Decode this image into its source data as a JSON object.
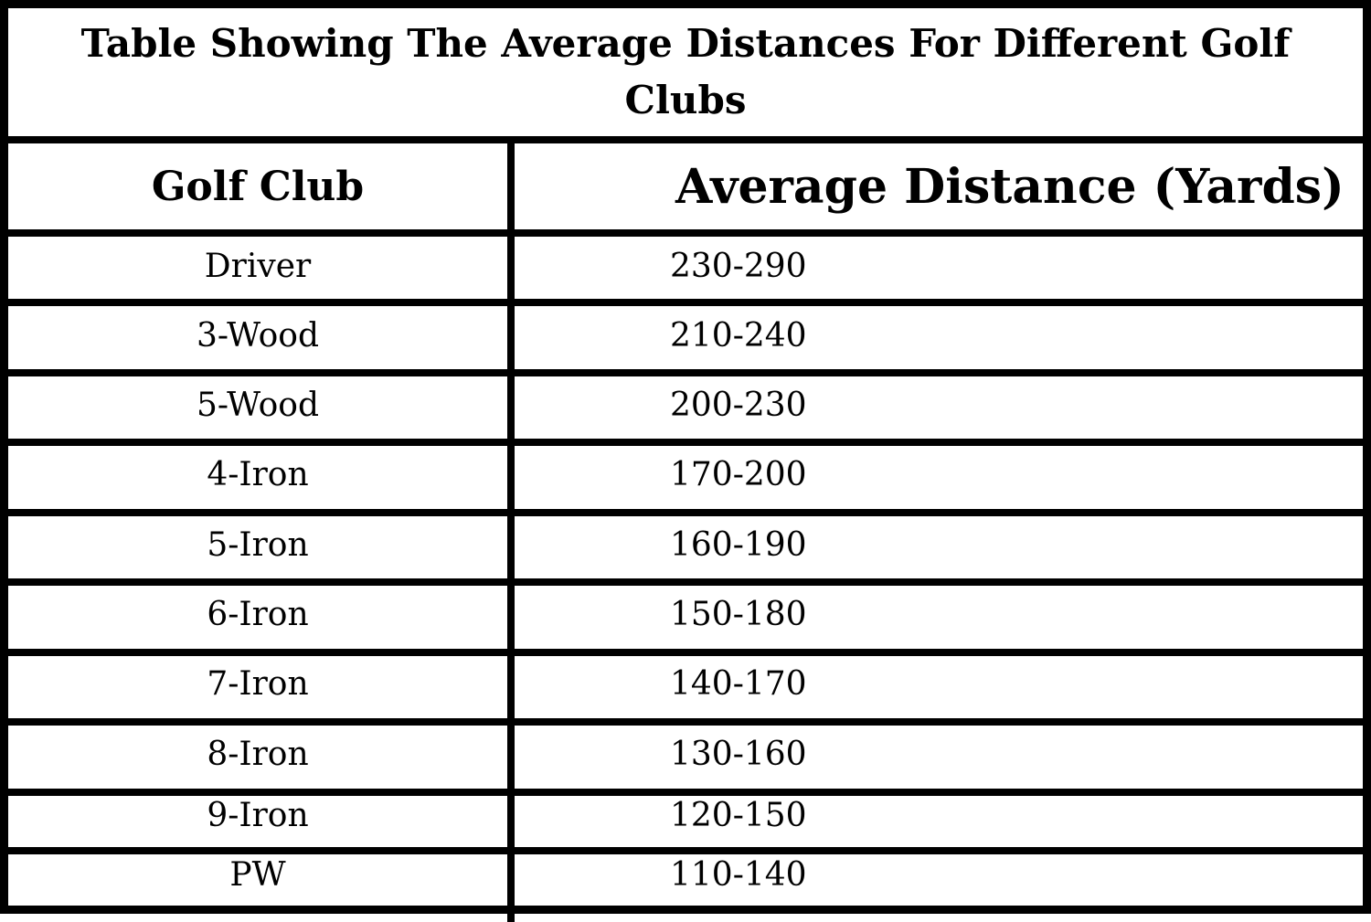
{
  "chart_data": {
    "type": "table",
    "title": "Table Showing The Average Distances For Different Golf Clubs",
    "columns": [
      "Golf Club",
      "Average Distance (Yards)"
    ],
    "rows": [
      {
        "club": "Driver",
        "distance": "230-290"
      },
      {
        "club": "3-Wood",
        "distance": "210-240"
      },
      {
        "club": "5-Wood",
        "distance": "200-230"
      },
      {
        "club": "4-Iron",
        "distance": "170-200"
      },
      {
        "club": "5-Iron",
        "distance": "160-190"
      },
      {
        "club": "6-Iron",
        "distance": "150-180"
      },
      {
        "club": "7-Iron",
        "distance": "140-170"
      },
      {
        "club": "8-Iron",
        "distance": "130-160"
      },
      {
        "club": "9-Iron",
        "distance": "120-150"
      },
      {
        "club": "PW",
        "distance": "110-140"
      }
    ]
  }
}
